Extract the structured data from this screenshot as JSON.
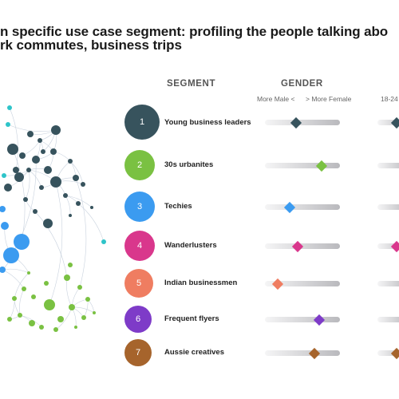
{
  "title": {
    "line1": "n specific use case segment: profiling the people talking abo",
    "line2": "rk commutes, business trips"
  },
  "columns": {
    "segment": "SEGMENT",
    "gender": "GENDER",
    "gender_left": "More Male <",
    "gender_right": "> More Female",
    "age_left": "18-24"
  },
  "segments": [
    {
      "num": "1",
      "label": "Young business leaders",
      "color": "#37535d",
      "gender_pos": 0.42,
      "age_pos": 0.9
    },
    {
      "num": "2",
      "label": "30s urbanites",
      "color": "#7ac142",
      "gender_pos": 0.76,
      "age_pos": null
    },
    {
      "num": "3",
      "label": "Techies",
      "color": "#3b9bf0",
      "gender_pos": 0.33,
      "age_pos": null
    },
    {
      "num": "4",
      "label": "Wanderlusters",
      "color": "#d9378c",
      "gender_pos": 0.44,
      "age_pos": 0.9
    },
    {
      "num": "5",
      "label": "Indian businessmen",
      "color": "#ef7d61",
      "gender_pos": 0.17,
      "age_pos": null
    },
    {
      "num": "6",
      "label": "Frequent flyers",
      "color": "#7e3bc8",
      "gender_pos": 0.72,
      "age_pos": null
    },
    {
      "num": "7",
      "label": "Aussie creatives",
      "color": "#a6642c",
      "gender_pos": 0.66,
      "age_pos": 0.9
    }
  ],
  "network_colors": {
    "dark": "#37535d",
    "green": "#7ac142",
    "blue": "#3b9bf0",
    "teal": "#2ec4c9",
    "edge": "#c9d2de"
  }
}
